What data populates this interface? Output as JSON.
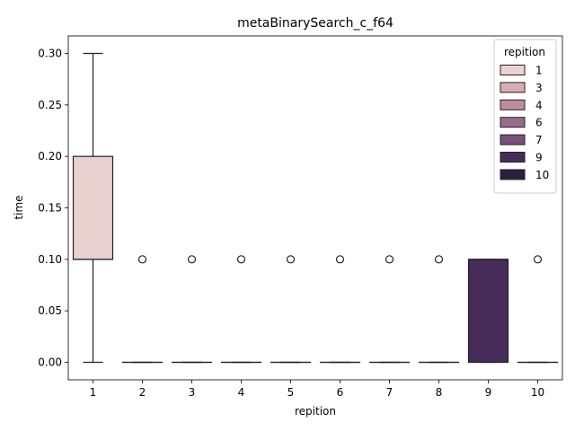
{
  "chart_data": {
    "type": "box",
    "title": "metaBinarySearch_c_f64",
    "xlabel": "repition",
    "ylabel": "time",
    "ylim": [
      -0.017,
      0.317
    ],
    "yticks": [
      0.0,
      0.05,
      0.1,
      0.15,
      0.2,
      0.25,
      0.3
    ],
    "ytick_labels": [
      "0.00",
      "0.05",
      "0.10",
      "0.15",
      "0.20",
      "0.25",
      "0.30"
    ],
    "categories": [
      "1",
      "2",
      "3",
      "4",
      "5",
      "6",
      "7",
      "8",
      "9",
      "10"
    ],
    "boxes": [
      {
        "category": "1",
        "q1": 0.1,
        "median": 0.1,
        "q3": 0.2,
        "whisker_low": 0.0,
        "whisker_high": 0.3,
        "outliers": [],
        "color": "#e9d1cf"
      },
      {
        "category": "2",
        "q1": 0.0,
        "median": 0.0,
        "q3": 0.0,
        "whisker_low": 0.0,
        "whisker_high": 0.0,
        "outliers": [
          0.1
        ],
        "color": "#dab2b7"
      },
      {
        "category": "3",
        "q1": 0.0,
        "median": 0.0,
        "q3": 0.0,
        "whisker_low": 0.0,
        "whisker_high": 0.0,
        "outliers": [
          0.1
        ],
        "color": "#c99ba8"
      },
      {
        "category": "4",
        "q1": 0.0,
        "median": 0.0,
        "q3": 0.0,
        "whisker_low": 0.0,
        "whisker_high": 0.0,
        "outliers": [
          0.1
        ],
        "color": "#ae7f9a"
      },
      {
        "category": "5",
        "q1": 0.0,
        "median": 0.0,
        "q3": 0.0,
        "whisker_low": 0.0,
        "whisker_high": 0.0,
        "outliers": [
          0.1
        ],
        "color": "#966b8d"
      },
      {
        "category": "6",
        "q1": 0.0,
        "median": 0.0,
        "q3": 0.0,
        "whisker_low": 0.0,
        "whisker_high": 0.0,
        "outliers": [
          0.1
        ],
        "color": "#7a5480"
      },
      {
        "category": "7",
        "q1": 0.0,
        "median": 0.0,
        "q3": 0.0,
        "whisker_low": 0.0,
        "whisker_high": 0.0,
        "outliers": [
          0.1
        ],
        "color": "#5f3e6e"
      },
      {
        "category": "8",
        "q1": 0.0,
        "median": 0.0,
        "q3": 0.0,
        "whisker_low": 0.0,
        "whisker_high": 0.0,
        "outliers": [
          0.1
        ],
        "color": "#4c2e5f"
      },
      {
        "category": "9",
        "q1": 0.0,
        "median": 0.1,
        "q3": 0.1,
        "whisker_low": 0.0,
        "whisker_high": 0.1,
        "outliers": [],
        "color": "#472c59"
      },
      {
        "category": "10",
        "q1": 0.0,
        "median": 0.0,
        "q3": 0.0,
        "whisker_low": 0.0,
        "whisker_high": 0.0,
        "outliers": [
          0.1
        ],
        "color": "#2c1e3e"
      }
    ],
    "legend": {
      "title": "repition",
      "placement": "top-right",
      "entries": [
        {
          "label": "1",
          "color": "#efd2cf"
        },
        {
          "label": "3",
          "color": "#d8aeb4"
        },
        {
          "label": "4",
          "color": "#bd8c9f"
        },
        {
          "label": "6",
          "color": "#9a6a8f"
        },
        {
          "label": "7",
          "color": "#7a4f78"
        },
        {
          "label": "9",
          "color": "#472c59"
        },
        {
          "label": "10",
          "color": "#2c1e3e"
        }
      ]
    },
    "grid": false
  }
}
